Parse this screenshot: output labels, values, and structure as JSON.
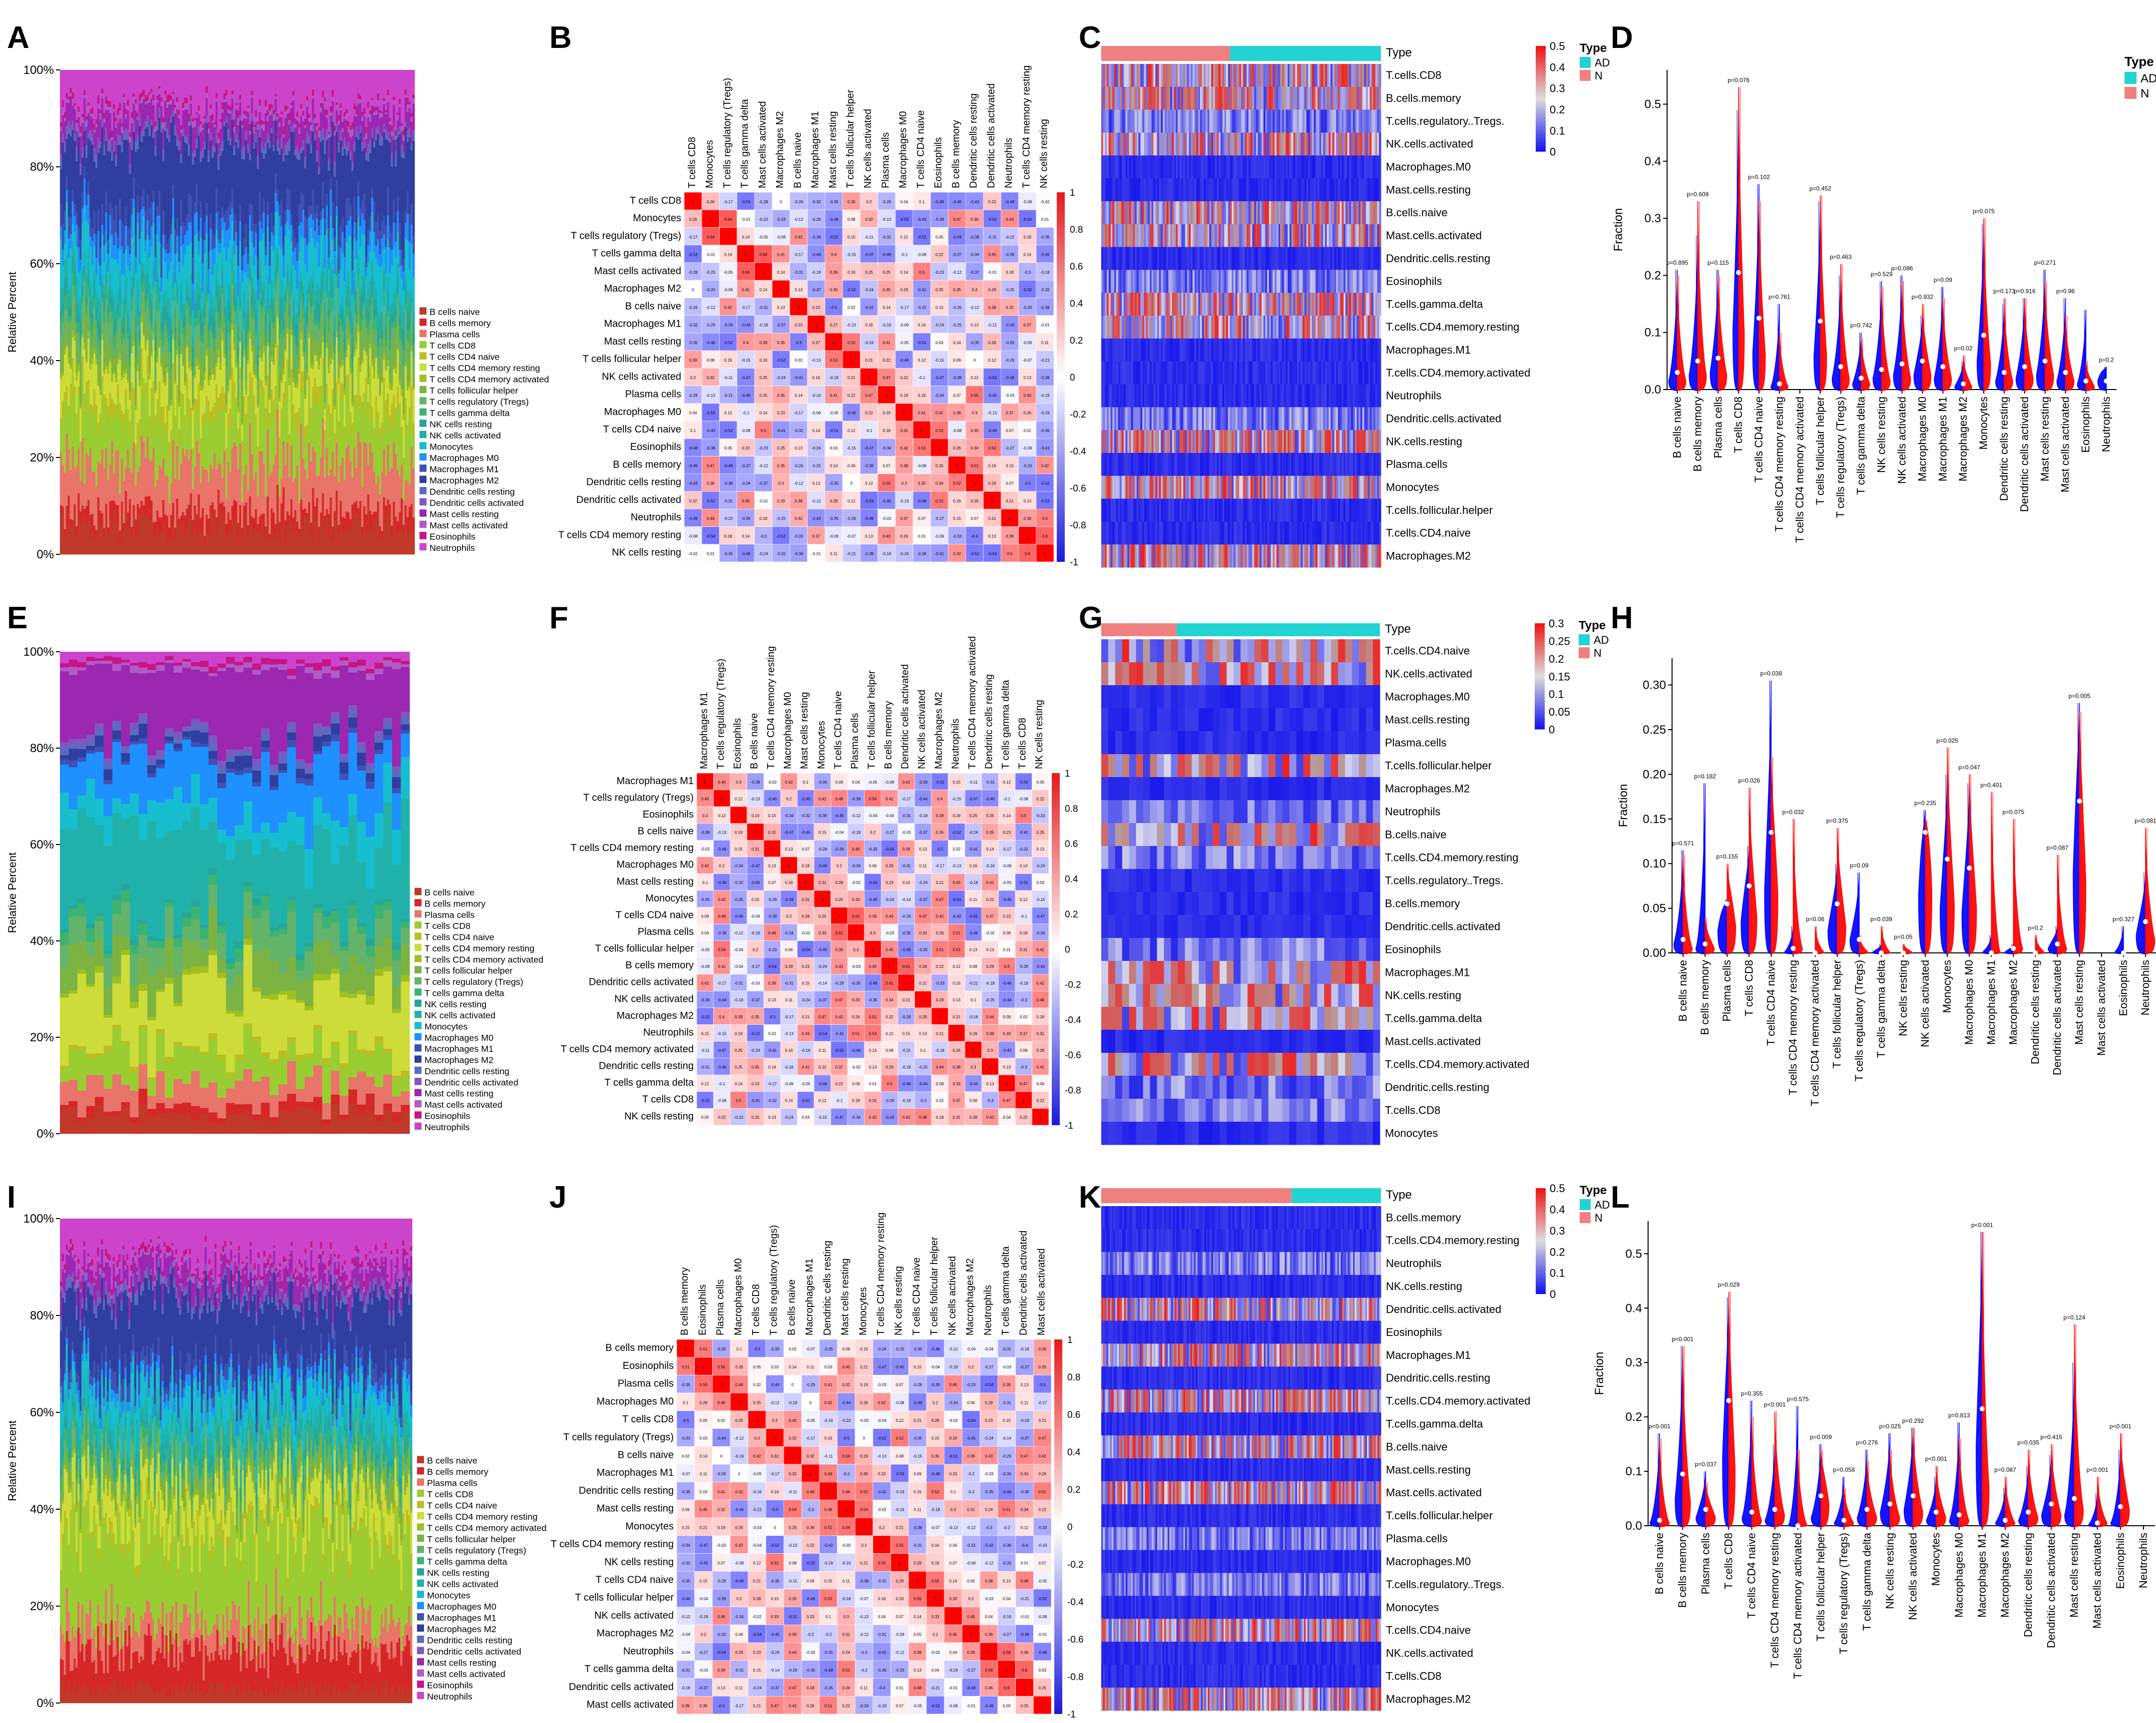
{
  "panel_letters": [
    "A",
    "B",
    "C",
    "D",
    "E",
    "F",
    "G",
    "H",
    "I",
    "J",
    "K",
    "L"
  ],
  "texts": {
    "relative_percent": "Relative Percent",
    "pct_ticks": [
      "0%",
      "20%",
      "40%",
      "60%",
      "80%",
      "100%"
    ],
    "type_label": "Type",
    "legend_ad": "AD",
    "legend_n": "N",
    "fraction": "Fraction"
  },
  "colors": {
    "ad": "#0000ff",
    "n": "#ff0000",
    "ad_bar": "#22d3d3",
    "n_bar": "#f08080"
  },
  "chart_data": [
    {
      "type": "area",
      "panel": "A",
      "title": "",
      "ylabel": "Relative Percent",
      "ylim": [
        0,
        100
      ],
      "legend": [
        "B cells naive",
        "B cells memory",
        "Plasma cells",
        "T cells CD8",
        "T cells CD4 naive",
        "T cells CD4 memory resting",
        "T cells CD4 memory activated",
        "T cells follicular helper",
        "T cells regulatory (Tregs)",
        "T cells gamma delta",
        "NK cells resting",
        "NK cells activated",
        "Monocytes",
        "Macrophages M0",
        "Macrophages M1",
        "Macrophages M2",
        "Dendritic cells resting",
        "Dendritic cells activated",
        "Mast cells resting",
        "Mast cells activated",
        "Eosinophils",
        "Neutrophils"
      ],
      "n_samples": 240,
      "mean_composition_percent": [
        6,
        3,
        10,
        10,
        3,
        6,
        1,
        4,
        4,
        2,
        3,
        3,
        7,
        4,
        4,
        14,
        1,
        1,
        4,
        1,
        1,
        8
      ]
    },
    {
      "type": "heatmap",
      "panel": "B",
      "labels": [
        "T cells CD8",
        "Monocytes",
        "T cells regulatory (Tregs)",
        "T cells gamma delta",
        "Mast cells activated",
        "Macrophages M2",
        "B cells naive",
        "Macrophages M1",
        "Mast cells resting",
        "T cells follicular helper",
        "NK cells activated",
        "Plasma cells",
        "Macrophages M0",
        "T cells CD4 naive",
        "Eosinophils",
        "B cells memory",
        "Dendritic cells resting",
        "Dendritic cells activated",
        "Neutrophils",
        "T cells CD4 memory resting",
        "NK cells resting"
      ],
      "colorbar": [
        "1",
        "0.8",
        "0.6",
        "0.4",
        "0.2",
        "0",
        "-0.2",
        "-0.4",
        "-0.6",
        "-0.8",
        "-1"
      ]
    },
    {
      "type": "heatmap",
      "panel": "C",
      "rows": [
        "T.cells.CD8",
        "B.cells.memory",
        "T.cells.regulatory..Tregs.",
        "NK.cells.activated",
        "Macrophages.M0",
        "Mast.cells.resting",
        "B.cells.naive",
        "Mast.cells.activated",
        "Dendritic.cells.resting",
        "Eosinophils",
        "T.cells.gamma.delta",
        "T.cells.CD4.memory.resting",
        "Macrophages.M1",
        "T.cells.CD4.memory.activated",
        "Neutrophils",
        "Dendritic.cells.activated",
        "NK.cells.resting",
        "Plasma.cells",
        "Monocytes",
        "T.cells.follicular.helper",
        "T.cells.CD4.naive",
        "Macrophages.M2"
      ],
      "colorbar": [
        "0.5",
        "0.4",
        "0.3",
        "0.2",
        "0.1",
        "0"
      ],
      "type_split": {
        "N_fraction": 0.46
      }
    },
    {
      "type": "violin",
      "panel": "D",
      "ylabel": "Fraction",
      "yticks": [
        "0.0",
        "0.1",
        "0.2",
        "0.3",
        "0.4",
        "0.5"
      ],
      "ylim": [
        0,
        0.56
      ],
      "categories": [
        "B cells naive",
        "B cells memory",
        "Plasma cells",
        "T cells CD8",
        "T cells CD4 naive",
        "T cells CD4 memory resting",
        "T cells CD4 memory activated",
        "T cells follicular helper",
        "T cells regulatory (Tregs)",
        "T cells gamma delta",
        "NK cells resting",
        "NK cells activated",
        "Macrophages M0",
        "Macrophages M1",
        "Macrophages M2",
        "Monocytes",
        "Dendritic cells resting",
        "Dendritic cells activated",
        "Mast cells resting",
        "Mast cells activated",
        "Eosinophils",
        "Neutrophils"
      ],
      "pvalues": [
        "p=0.895",
        "p=0.609",
        "p=0.115",
        "p=0.076",
        "p=0.102",
        "p=0.761",
        "",
        "p=0.452",
        "p=0.463",
        "p=0.742",
        "p=0.529",
        "p=0.096",
        "p=0.932",
        "p=0.09",
        "p=0.02",
        "p=0.075",
        "p=0.173",
        "p=0.916",
        "p=0.271",
        "p=0.96",
        "",
        "p=0.2"
      ],
      "series": [
        {
          "name": "AD",
          "max": [
            0.21,
            0.27,
            0.21,
            0.49,
            0.36,
            0.15,
            0.0,
            0.33,
            0.2,
            0.1,
            0.19,
            0.2,
            0.13,
            0.18,
            0.05,
            0.29,
            0.15,
            0.16,
            0.21,
            0.16,
            0.14,
            0.04
          ],
          "median": [
            0.03,
            0.05,
            0.06,
            0.21,
            0.13,
            0.01,
            0.0,
            0.12,
            0.04,
            0.02,
            0.04,
            0.05,
            0.05,
            0.04,
            0.01,
            0.1,
            0.03,
            0.04,
            0.05,
            0.03,
            0.02,
            0.03
          ]
        },
        {
          "name": "N",
          "max": [
            0.2,
            0.33,
            0.2,
            0.53,
            0.33,
            0.1,
            0.0,
            0.34,
            0.22,
            0.09,
            0.18,
            0.19,
            0.15,
            0.16,
            0.06,
            0.3,
            0.16,
            0.16,
            0.19,
            0.13,
            0.05,
            0.0
          ],
          "median": [
            0.03,
            0.05,
            0.05,
            0.2,
            0.12,
            0.01,
            0.0,
            0.12,
            0.04,
            0.02,
            0.03,
            0.04,
            0.05,
            0.04,
            0.01,
            0.09,
            0.03,
            0.04,
            0.05,
            0.03,
            0.01,
            0.0
          ]
        }
      ]
    },
    {
      "type": "area",
      "panel": "E",
      "ylabel": "Relative Percent",
      "ylim": [
        0,
        100
      ],
      "legend": [
        "B cells naive",
        "B cells memory",
        "Plasma cells",
        "T cells CD8",
        "T cells CD4 naive",
        "T cells CD4 memory resting",
        "T cells CD4 memory activated",
        "T cells follicular helper",
        "T cells regulatory (Tregs)",
        "T cells gamma delta",
        "NK cells resting",
        "NK cells activated",
        "Monocytes",
        "Macrophages M0",
        "Macrophages M1",
        "Macrophages M2",
        "Dendritic cells resting",
        "Dendritic cells activated",
        "Mast cells resting",
        "Mast cells activated",
        "Eosinophils",
        "Neutrophils"
      ],
      "n_samples": 40,
      "mean_composition_percent": [
        4,
        2,
        5,
        6,
        1,
        12,
        1,
        6,
        5,
        2,
        1,
        16,
        6,
        10,
        1,
        2,
        1,
        1,
        14,
        1,
        1,
        2
      ]
    },
    {
      "type": "heatmap",
      "panel": "F",
      "labels": [
        "Macrophages M1",
        "T cells regulatory (Tregs)",
        "Eosinophils",
        "B cells naive",
        "T cells CD4 memory resting",
        "Macrophages M0",
        "Mast cells resting",
        "Monocytes",
        "T cells CD4 naive",
        "Plasma cells",
        "T cells follicular helper",
        "B cells memory",
        "Dendritic cells activated",
        "NK cells activated",
        "Macrophages M2",
        "Neutrophils",
        "T cells CD4 memory activated",
        "Dendritic cells resting",
        "T cells gamma delta",
        "T cells CD8",
        "NK cells resting"
      ],
      "colorbar": [
        "1",
        "0.8",
        "0.6",
        "0.4",
        "0.2",
        "0",
        "-0.2",
        "-0.4",
        "-0.6",
        "-0.8",
        "-1"
      ]
    },
    {
      "type": "heatmap",
      "panel": "G",
      "rows": [
        "T.cells.CD4.naive",
        "NK.cells.activated",
        "Macrophages.M0",
        "Mast.cells.resting",
        "Plasma.cells",
        "T.cells.follicular.helper",
        "Macrophages.M2",
        "Neutrophils",
        "B.cells.naive",
        "T.cells.CD4.memory.resting",
        "T.cells.regulatory..Tregs.",
        "B.cells.memory",
        "Dendritic.cells.activated",
        "Eosinophils",
        "Macrophages.M1",
        "NK.cells.resting",
        "T.cells.gamma.delta",
        "Mast.cells.activated",
        "T.cells.CD4.memory.activated",
        "Dendritic.cells.resting",
        "T.cells.CD8",
        "Monocytes"
      ],
      "colorbar": [
        "0.3",
        "0.25",
        "0.2",
        "0.15",
        "0.1",
        "0.05",
        "0"
      ],
      "type_split": {
        "N_fraction": 0.27
      }
    },
    {
      "type": "violin",
      "panel": "H",
      "ylabel": "Fraction",
      "yticks": [
        "0.00",
        "0.05",
        "0.10",
        "0.15",
        "0.20",
        "0.25",
        "0.30"
      ],
      "ylim": [
        0,
        0.33
      ],
      "categories": [
        "B cells naive",
        "B cells memory",
        "Plasma cells",
        "T cells CD8",
        "T cells CD4 naive",
        "T cells CD4 memory resting",
        "T cells CD4 memory activated",
        "T cells follicular helper",
        "T cells regulatory (Tregs)",
        "T cells gamma delta",
        "NK cells resting",
        "NK cells activated",
        "Monocytes",
        "Macrophages M0",
        "Macrophages M1",
        "Macrophages M2",
        "Dendritic cells resting",
        "Dendritic cells activated",
        "Mast cells resting",
        "Mast cells activated",
        "Eosinophils",
        "Neutrophils"
      ],
      "pvalues": [
        "p=0.571",
        "p=0.182",
        "p=0.155",
        "p=0.026",
        "p=0.038",
        "p=0.032",
        "p=0.06",
        "p=0.375",
        "p=0.09",
        "p=0.039",
        "p=0.05",
        "p=0.235",
        "p=0.025",
        "p=0.047",
        "p=0.401",
        "p=0.075",
        "p=0.2",
        "p=0.087",
        "p=0.005",
        "",
        "p=0.327",
        "p=0.081"
      ],
      "series": [
        {
          "name": "AD",
          "max": [
            0.115,
            0.19,
            0.06,
            0.12,
            0.305,
            0.03,
            0.0,
            0.1,
            0.09,
            0.01,
            0.0,
            0.16,
            0.2,
            0.19,
            0.02,
            0.01,
            0.0,
            0.03,
            0.28,
            0.0,
            0.03,
            0.09
          ],
          "median": [
            0.02,
            0.01,
            0.05,
            0.07,
            0.14,
            0.0,
            0.0,
            0.05,
            0.03,
            0.0,
            0.0,
            0.13,
            0.1,
            0.09,
            0.0,
            0.0,
            0.0,
            0.01,
            0.18,
            0.0,
            0.0,
            0.04
          ]
        },
        {
          "name": "N",
          "max": [
            0.11,
            0.04,
            0.1,
            0.185,
            0.22,
            0.15,
            0.03,
            0.14,
            0.02,
            0.03,
            0.01,
            0.15,
            0.23,
            0.2,
            0.18,
            0.15,
            0.02,
            0.11,
            0.27,
            0.0,
            0.0,
            0.14
          ],
          "median": [
            0.01,
            0.01,
            0.06,
            0.08,
            0.13,
            0.01,
            0.0,
            0.06,
            0.0,
            0.0,
            0.0,
            0.14,
            0.11,
            0.1,
            0.0,
            0.01,
            0.0,
            0.01,
            0.16,
            0.0,
            0.0,
            0.03
          ]
        }
      ]
    },
    {
      "type": "area",
      "panel": "I",
      "ylabel": "Relative Percent",
      "ylim": [
        0,
        100
      ],
      "legend": [
        "B cells naive",
        "B cells memory",
        "Plasma cells",
        "T cells CD8",
        "T cells CD4 naive",
        "T cells CD4 memory resting",
        "T cells CD4 memory activated",
        "T cells follicular helper",
        "T cells regulatory (Tregs)",
        "T cells gamma delta",
        "NK cells resting",
        "NK cells activated",
        "Monocytes",
        "Macrophages M0",
        "Macrophages M1",
        "Macrophages M2",
        "Dendritic cells resting",
        "Dendritic cells activated",
        "Mast cells resting",
        "Mast cells activated",
        "Eosinophils",
        "Neutrophils"
      ],
      "n_samples": 240,
      "mean_composition_percent": [
        3,
        8,
        6,
        18,
        2,
        7,
        1,
        3,
        2,
        2,
        2,
        4,
        6,
        2,
        3,
        14,
        1,
        1,
        4,
        1,
        1,
        9
      ]
    },
    {
      "type": "heatmap",
      "panel": "J",
      "labels": [
        "B cells memory",
        "Eosinophils",
        "Plasma cells",
        "Macrophages M0",
        "T cells CD8",
        "T cells regulatory (Tregs)",
        "B cells naive",
        "Macrophages M1",
        "Dendritic cells resting",
        "Mast cells resting",
        "Monocytes",
        "T cells CD4 memory resting",
        "NK cells resting",
        "T cells CD4 naive",
        "T cells follicular helper",
        "NK cells activated",
        "Macrophages M2",
        "Neutrophils",
        "T cells gamma delta",
        "Dendritic cells activated",
        "Mast cells activated"
      ],
      "colorbar": [
        "1",
        "0.8",
        "0.6",
        "0.4",
        "0.2",
        "0",
        "-0.2",
        "-0.4",
        "-0.6",
        "-0.8",
        "-1"
      ]
    },
    {
      "type": "heatmap",
      "panel": "K",
      "rows": [
        "B.cells.memory",
        "T.cells.CD4.memory.resting",
        "Neutrophils",
        "NK.cells.resting",
        "Dendritic.cells.activated",
        "Eosinophils",
        "Macrophages.M1",
        "Dendritic.cells.resting",
        "T.cells.CD4.memory.activated",
        "T.cells.gamma.delta",
        "B.cells.naive",
        "Mast.cells.resting",
        "Mast.cells.activated",
        "T.cells.follicular.helper",
        "Plasma.cells",
        "Macrophages.M0",
        "T.cells.regulatory..Tregs.",
        "Monocytes",
        "T.cells.CD4.naive",
        "NK.cells.activated",
        "T.cells.CD8",
        "Macrophages.M2"
      ],
      "colorbar": [
        "0.5",
        "0.4",
        "0.3",
        "0.2",
        "0.1",
        "0"
      ],
      "type_split": {
        "N_fraction": 0.68
      }
    },
    {
      "type": "violin",
      "panel": "L",
      "ylabel": "Fraction",
      "yticks": [
        "0.0",
        "0.1",
        "0.2",
        "0.3",
        "0.4",
        "0.5"
      ],
      "ylim": [
        0,
        0.56
      ],
      "categories": [
        "B cells naive",
        "B cells memory",
        "Plasma cells",
        "T cells CD8",
        "T cells CD4 naive",
        "T cells CD4 memory resting",
        "T cells CD4 memory activated",
        "T cells follicular helper",
        "T cells regulatory (Tregs)",
        "T cells gamma delta",
        "NK cells resting",
        "NK cells activated",
        "Monocytes",
        "Macrophages M0",
        "Macrophages M1",
        "Macrophages M2",
        "Dendritic cells resting",
        "Dendritic cells activated",
        "Mast cells resting",
        "Mast cells activated",
        "Eosinophils",
        "Neutrophils"
      ],
      "pvalues": [
        "p<0.001",
        "p<0.001",
        "p=0.037",
        "p=0.029",
        "p=0.355",
        "p<0.001",
        "p=0.575",
        "p=0.009",
        "p=0.058",
        "p=0.276",
        "p=0.025",
        "p=0.292",
        "p<0.001",
        "p=0.813",
        "p<0.001",
        "p=0.087",
        "p=0.035",
        "p=0.415",
        "p=0.124",
        "p<0.001",
        "p<0.001",
        ""
      ],
      "series": [
        {
          "name": "AD",
          "max": [
            0.17,
            0.33,
            0.1,
            0.42,
            0.23,
            0.15,
            0.22,
            0.15,
            0.09,
            0.14,
            0.17,
            0.18,
            0.09,
            0.19,
            0.54,
            0.07,
            0.11,
            0.13,
            0.3,
            0.06,
            0.14,
            0.0
          ],
          "median": [
            0.01,
            0.1,
            0.03,
            0.25,
            0.03,
            0.02,
            0.0,
            0.03,
            0.01,
            0.03,
            0.05,
            0.06,
            0.02,
            0.02,
            0.29,
            0.01,
            0.02,
            0.04,
            0.04,
            0.0,
            0.01,
            0.0
          ]
        },
        {
          "name": "N",
          "max": [
            0.16,
            0.33,
            0.08,
            0.43,
            0.2,
            0.21,
            0.14,
            0.14,
            0.07,
            0.12,
            0.14,
            0.18,
            0.11,
            0.16,
            0.54,
            0.09,
            0.14,
            0.15,
            0.37,
            0.09,
            0.17,
            0.0
          ],
          "median": [
            0.01,
            0.09,
            0.03,
            0.21,
            0.02,
            0.04,
            0.0,
            0.08,
            0.01,
            0.03,
            0.03,
            0.05,
            0.03,
            0.02,
            0.14,
            0.01,
            0.03,
            0.04,
            0.06,
            0.01,
            0.06,
            0.0
          ]
        }
      ]
    }
  ]
}
